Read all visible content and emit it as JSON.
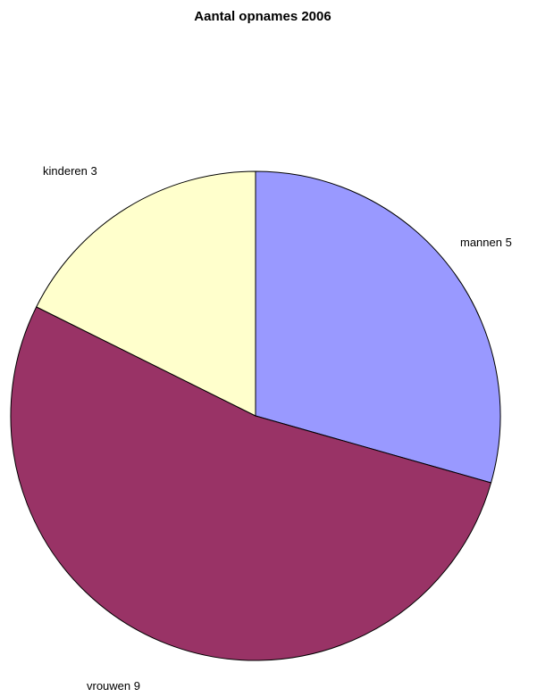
{
  "chart_data": {
    "type": "pie",
    "title": "Aantal opnames 2006",
    "start_angle_deg": 0,
    "direction": "clockwise",
    "slices": [
      {
        "label": "mannen",
        "value": 5,
        "display": "mannen 5",
        "color": "#9999FF"
      },
      {
        "label": "vrouwen",
        "value": 9,
        "display": "vrouwen 9",
        "color": "#993366"
      },
      {
        "label": "kinderen",
        "value": 3,
        "display": "kinderen 3",
        "color": "#FFFFCC"
      }
    ],
    "legend": "none"
  }
}
